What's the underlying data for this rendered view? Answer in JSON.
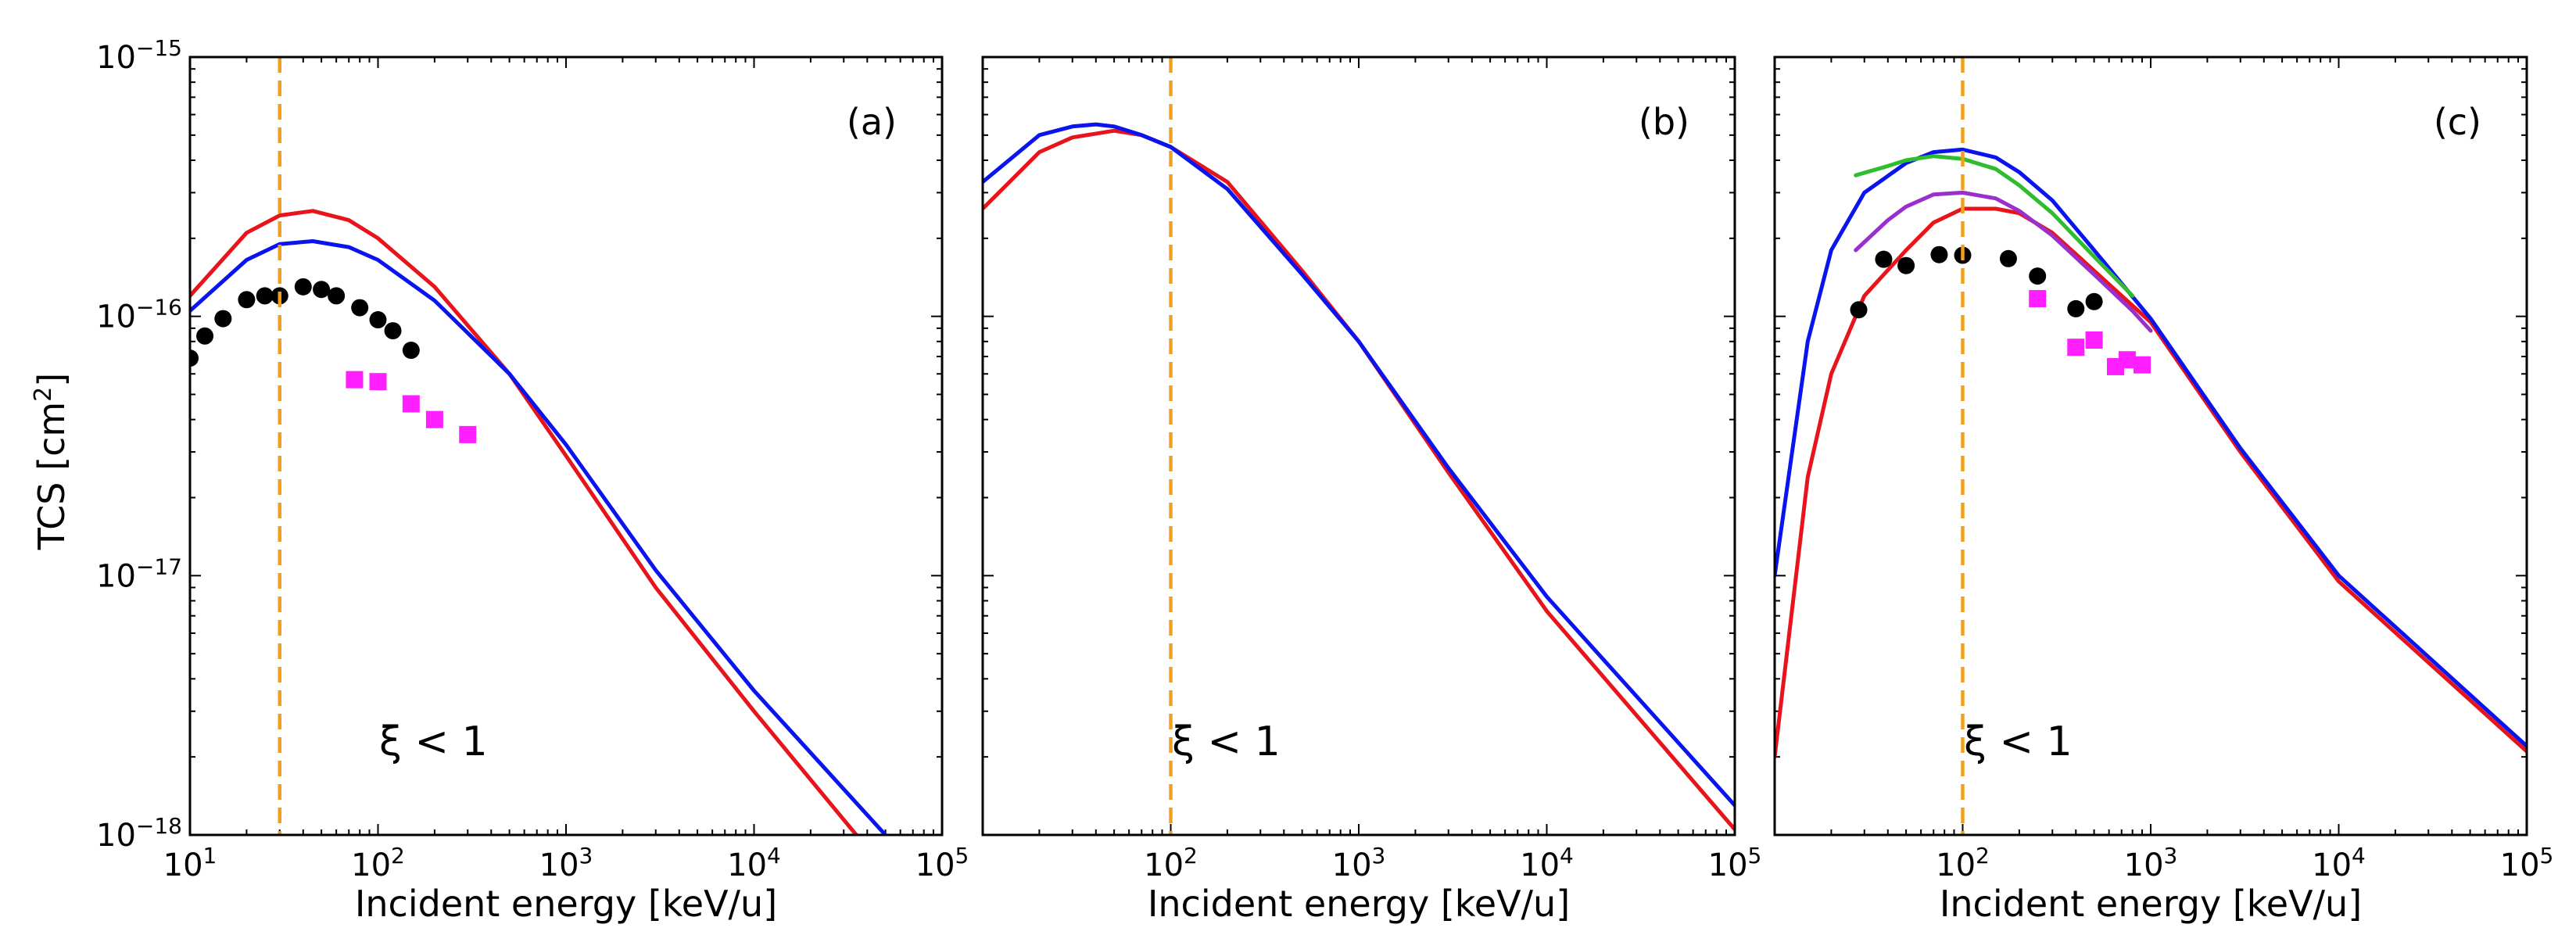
{
  "figure": {
    "ylabel_main": "TCS [cm",
    "ylabel_sup": "2",
    "ylabel_close": "]"
  },
  "chart_data": [
    {
      "type": "line",
      "panel": "(a)",
      "xlabel": "Incident energy [keV/u]",
      "ylabel": "TCS [cm2]",
      "xscale": "log",
      "yscale": "log",
      "xlim": [
        10,
        100000
      ],
      "ylim": [
        1e-18,
        1e-15
      ],
      "x_ticks": [
        {
          "v": 10,
          "m": "10",
          "e": "1"
        },
        {
          "v": 100,
          "m": "10",
          "e": "2"
        },
        {
          "v": 1000,
          "m": "10",
          "e": "3"
        },
        {
          "v": 10000,
          "m": "10",
          "e": "4"
        },
        {
          "v": 100000,
          "m": "10",
          "e": "5"
        }
      ],
      "y_ticks": [
        {
          "v": 1e-18,
          "m": "10",
          "e": "−18"
        },
        {
          "v": 1e-17,
          "m": "10",
          "e": "−17"
        },
        {
          "v": 1e-16,
          "m": "10",
          "e": "−16"
        },
        {
          "v": 1e-15,
          "m": "10",
          "e": "−15"
        }
      ],
      "show_y_tick_labels": true,
      "annotation": "ξ < 1",
      "vline": {
        "x": 30,
        "color": "#f0a01e"
      },
      "series": [
        {
          "name": "red curve",
          "color": "#e8141c",
          "kind": "line",
          "x": [
            10,
            20,
            30,
            45,
            70,
            100,
            200,
            500,
            1000,
            3000,
            10000,
            35000
          ],
          "y": [
            1.2e-16,
            2.1e-16,
            2.45e-16,
            2.55e-16,
            2.35e-16,
            2e-16,
            1.3e-16,
            6e-17,
            2.9e-17,
            9e-18,
            3e-18,
            1e-18
          ]
        },
        {
          "name": "blue curve",
          "color": "#0a14ee",
          "kind": "line",
          "x": [
            10,
            20,
            30,
            45,
            70,
            100,
            200,
            500,
            1000,
            3000,
            10000,
            50000
          ],
          "y": [
            1.05e-16,
            1.65e-16,
            1.9e-16,
            1.95e-16,
            1.85e-16,
            1.65e-16,
            1.15e-16,
            6e-17,
            3.2e-17,
            1.05e-17,
            3.6e-18,
            1e-18
          ]
        },
        {
          "name": "black circles",
          "color": "#000000",
          "kind": "circle",
          "x": [
            10,
            12,
            15,
            20,
            25,
            30,
            40,
            50,
            60,
            80,
            100,
            120,
            150
          ],
          "y": [
            6.9e-17,
            8.4e-17,
            9.8e-17,
            1.16e-16,
            1.2e-16,
            1.2e-16,
            1.3e-16,
            1.27e-16,
            1.2e-16,
            1.08e-16,
            9.7e-17,
            8.8e-17,
            7.4e-17
          ]
        },
        {
          "name": "magenta squares",
          "color": "#ff1eff",
          "kind": "square",
          "x": [
            75,
            100,
            150,
            200,
            300
          ],
          "y": [
            5.7e-17,
            5.6e-17,
            4.6e-17,
            4e-17,
            3.5e-17
          ]
        }
      ]
    },
    {
      "type": "line",
      "panel": "(b)",
      "xlabel": "Incident energy [keV/u]",
      "ylabel": "TCS [cm2]",
      "xscale": "log",
      "yscale": "log",
      "xlim": [
        10,
        100000
      ],
      "ylim": [
        1e-18,
        1e-15
      ],
      "x_ticks": [
        {
          "v": 100,
          "m": "10",
          "e": "2"
        },
        {
          "v": 1000,
          "m": "10",
          "e": "3"
        },
        {
          "v": 10000,
          "m": "10",
          "e": "4"
        },
        {
          "v": 100000,
          "m": "10",
          "e": "5"
        }
      ],
      "y_ticks": [],
      "show_y_tick_labels": false,
      "annotation": "ξ < 1",
      "vline": {
        "x": 100,
        "color": "#f0a01e"
      },
      "series": [
        {
          "name": "red curve",
          "color": "#e8141c",
          "kind": "line",
          "x": [
            10,
            20,
            30,
            50,
            70,
            100,
            200,
            500,
            1000,
            3000,
            10000,
            100000
          ],
          "y": [
            2.6e-16,
            4.3e-16,
            4.9e-16,
            5.2e-16,
            5e-16,
            4.5e-16,
            3.3e-16,
            1.5e-16,
            8e-17,
            2.5e-17,
            7.3e-18,
            1.05e-18
          ]
        },
        {
          "name": "blue curve",
          "color": "#0a14ee",
          "kind": "line",
          "x": [
            10,
            20,
            30,
            40,
            50,
            70,
            100,
            200,
            500,
            1000,
            3000,
            10000,
            100000
          ],
          "y": [
            3.3e-16,
            5e-16,
            5.4e-16,
            5.5e-16,
            5.4e-16,
            5e-16,
            4.5e-16,
            3.1e-16,
            1.45e-16,
            8e-17,
            2.6e-17,
            8.3e-18,
            1.3e-18
          ]
        }
      ]
    },
    {
      "type": "line",
      "panel": "(c)",
      "xlabel": "Incident energy [keV/u]",
      "ylabel": "TCS [cm2]",
      "xscale": "log",
      "yscale": "log",
      "xlim": [
        10,
        100000
      ],
      "ylim": [
        1e-18,
        1e-15
      ],
      "x_ticks": [
        {
          "v": 100,
          "m": "10",
          "e": "2"
        },
        {
          "v": 1000,
          "m": "10",
          "e": "3"
        },
        {
          "v": 10000,
          "m": "10",
          "e": "4"
        },
        {
          "v": 100000,
          "m": "10",
          "e": "5"
        }
      ],
      "y_ticks": [],
      "show_y_tick_labels": false,
      "annotation": "ξ < 1",
      "vline": {
        "x": 100,
        "color": "#f0a01e"
      },
      "series": [
        {
          "name": "red curve",
          "color": "#e8141c",
          "kind": "line",
          "x": [
            10,
            15,
            20,
            30,
            50,
            70,
            100,
            150,
            200,
            300,
            500,
            1000,
            3000,
            10000,
            100000
          ],
          "y": [
            2e-18,
            2.4e-17,
            6e-17,
            1.2e-16,
            1.8e-16,
            2.3e-16,
            2.6e-16,
            2.6e-16,
            2.5e-16,
            2.1e-16,
            1.5e-16,
            9.5e-17,
            3e-17,
            9.5e-18,
            2.1e-18
          ]
        },
        {
          "name": "blue curve",
          "color": "#0a14ee",
          "kind": "line",
          "x": [
            10,
            15,
            20,
            30,
            50,
            70,
            100,
            150,
            200,
            300,
            500,
            1000,
            3000,
            10000,
            100000
          ],
          "y": [
            1e-17,
            8e-17,
            1.8e-16,
            3e-16,
            3.9e-16,
            4.3e-16,
            4.4e-16,
            4.1e-16,
            3.6e-16,
            2.8e-16,
            1.8e-16,
            9.8e-17,
            3.1e-17,
            1e-17,
            2.2e-18
          ]
        },
        {
          "name": "green curve",
          "color": "#2ebd2e",
          "kind": "line",
          "x": [
            27,
            40,
            50,
            70,
            100,
            150,
            200,
            300,
            500,
            800
          ],
          "y": [
            3.5e-16,
            3.8e-16,
            4e-16,
            4.15e-16,
            4.05e-16,
            3.7e-16,
            3.2e-16,
            2.5e-16,
            1.7e-16,
            1.2e-16
          ]
        },
        {
          "name": "purple curve",
          "color": "#9a30cc",
          "kind": "line",
          "x": [
            27,
            40,
            50,
            70,
            100,
            150,
            200,
            300,
            500,
            800,
            1000
          ],
          "y": [
            1.8e-16,
            2.35e-16,
            2.65e-16,
            2.95e-16,
            3e-16,
            2.85e-16,
            2.55e-16,
            2.05e-16,
            1.45e-16,
            1.05e-16,
            8.8e-17
          ]
        },
        {
          "name": "black circles",
          "color": "#000000",
          "kind": "circle",
          "x": [
            28,
            38,
            50,
            75,
            100,
            175,
            250,
            400,
            500
          ],
          "y": [
            1.06e-16,
            1.66e-16,
            1.57e-16,
            1.73e-16,
            1.72e-16,
            1.67e-16,
            1.43e-16,
            1.07e-16,
            1.14e-16
          ]
        },
        {
          "name": "magenta squares",
          "color": "#ff1eff",
          "kind": "square",
          "x": [
            250,
            400,
            500,
            650,
            750,
            900
          ],
          "y": [
            1.17e-16,
            7.6e-17,
            8.1e-17,
            6.4e-17,
            6.8e-17,
            6.5e-17
          ]
        }
      ]
    }
  ]
}
